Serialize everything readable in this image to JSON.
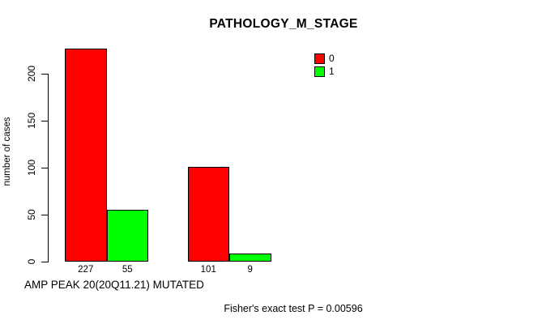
{
  "chart_data": {
    "type": "bar",
    "title": "PATHOLOGY_M_STAGE",
    "ylabel": "number of cases",
    "xlabel": "AMP PEAK 20(20Q11.21) MUTATED",
    "annotation": "Fisher's exact test P = 0.00596",
    "yticks": [
      0,
      50,
      100,
      150,
      200
    ],
    "ylim": [
      0,
      235
    ],
    "grid": false,
    "legend_position": "top-right",
    "background_color": "#ffffff",
    "categories": [
      "group-1",
      "group-2"
    ],
    "series": [
      {
        "name": "0",
        "color": "#ff0000",
        "values": [
          227,
          101
        ]
      },
      {
        "name": "1",
        "color": "#00ff00",
        "values": [
          55,
          9
        ]
      }
    ]
  }
}
